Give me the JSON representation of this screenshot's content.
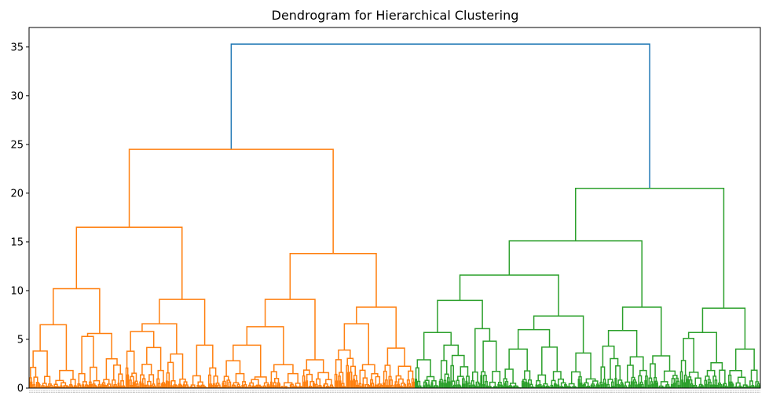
{
  "chart_data": {
    "type": "dendrogram",
    "title": "Dendrogram for Hierarchical Clustering",
    "xlabel": "",
    "ylabel": "",
    "ylim": [
      0,
      37
    ],
    "yticks": [
      0,
      5,
      10,
      15,
      20,
      25,
      30,
      35
    ],
    "grid": false,
    "colors": {
      "above_threshold": "#1f77b4",
      "cluster_1": "#ff7f0e",
      "cluster_2": "#2ca02c"
    },
    "tree": {
      "h": 35.3,
      "c": "above_threshold",
      "children": [
        {
          "h": 24.5,
          "c": "cluster_1",
          "children": [
            {
              "h": 16.5,
              "c": "cluster_1",
              "children": [
                {
                  "h": 10.2,
                  "c": "cluster_1",
                  "children": [
                    {
                      "h": 6.5,
                      "c": "cluster_1",
                      "children": [
                        {
                          "h": 3.8,
                          "leaves": 3
                        },
                        {
                          "h": 1.8,
                          "leaves": 3
                        }
                      ]
                    },
                    {
                      "h": 5.6,
                      "c": "cluster_1",
                      "children": [
                        {
                          "h": 5.3,
                          "leaves": 3
                        },
                        {
                          "h": 3.0,
                          "leaves": 3
                        }
                      ]
                    }
                  ]
                },
                {
                  "h": 9.1,
                  "c": "cluster_1",
                  "children": [
                    {
                      "h": 6.6,
                      "c": "cluster_1",
                      "children": [
                        {
                          "h": 5.8,
                          "leaves": 5
                        },
                        {
                          "h": 3.5,
                          "leaves": 3
                        }
                      ]
                    },
                    {
                      "h": 4.4,
                      "leaves": 4
                    }
                  ]
                }
              ]
            },
            {
              "h": 13.8,
              "c": "cluster_1",
              "children": [
                {
                  "h": 9.1,
                  "c": "cluster_1",
                  "children": [
                    {
                      "h": 6.3,
                      "c": "cluster_1",
                      "children": [
                        {
                          "h": 4.4,
                          "leaves": 6
                        },
                        {
                          "h": 2.4,
                          "leaves": 4
                        }
                      ]
                    },
                    {
                      "h": 2.9,
                      "leaves": 4
                    }
                  ]
                },
                {
                  "h": 8.3,
                  "c": "cluster_1",
                  "children": [
                    {
                      "h": 6.6,
                      "c": "cluster_1",
                      "children": [
                        {
                          "h": 3.9,
                          "leaves": 3
                        },
                        {
                          "h": 2.4,
                          "leaves": 3
                        }
                      ]
                    },
                    {
                      "h": 4.1,
                      "leaves": 4
                    }
                  ]
                }
              ]
            }
          ]
        },
        {
          "h": 20.5,
          "c": "cluster_2",
          "children": [
            {
              "h": 15.1,
              "c": "cluster_2",
              "children": [
                {
                  "h": 11.6,
                  "c": "cluster_2",
                  "children": [
                    {
                      "h": 9.0,
                      "c": "cluster_2",
                      "children": [
                        {
                          "h": 5.7,
                          "c": "cluster_2",
                          "children": [
                            {
                              "h": 2.9,
                              "leaves": 3
                            },
                            {
                              "h": 4.4,
                              "leaves": 4
                            }
                          ]
                        },
                        {
                          "h": 6.1,
                          "leaves": 4
                        }
                      ]
                    },
                    {
                      "h": 7.4,
                      "c": "cluster_2",
                      "children": [
                        {
                          "h": 6.0,
                          "c": "cluster_2",
                          "children": [
                            {
                              "h": 4.0,
                              "leaves": 4
                            },
                            {
                              "h": 4.2,
                              "leaves": 4
                            }
                          ]
                        },
                        {
                          "h": 3.6,
                          "leaves": 4
                        }
                      ]
                    }
                  ]
                },
                {
                  "h": 8.3,
                  "c": "cluster_2",
                  "children": [
                    {
                      "h": 5.9,
                      "c": "cluster_2",
                      "children": [
                        {
                          "h": 4.3,
                          "leaves": 3
                        },
                        {
                          "h": 3.2,
                          "leaves": 3
                        }
                      ]
                    },
                    {
                      "h": 3.3,
                      "leaves": 4
                    }
                  ]
                }
              ]
            },
            {
              "h": 8.2,
              "c": "cluster_2",
              "children": [
                {
                  "h": 5.7,
                  "c": "cluster_2",
                  "children": [
                    {
                      "h": 5.1,
                      "leaves": 3
                    },
                    {
                      "h": 2.6,
                      "leaves": 3
                    }
                  ]
                },
                {
                  "h": 4.0,
                  "leaves": 4
                }
              ]
            }
          ]
        }
      ]
    }
  }
}
